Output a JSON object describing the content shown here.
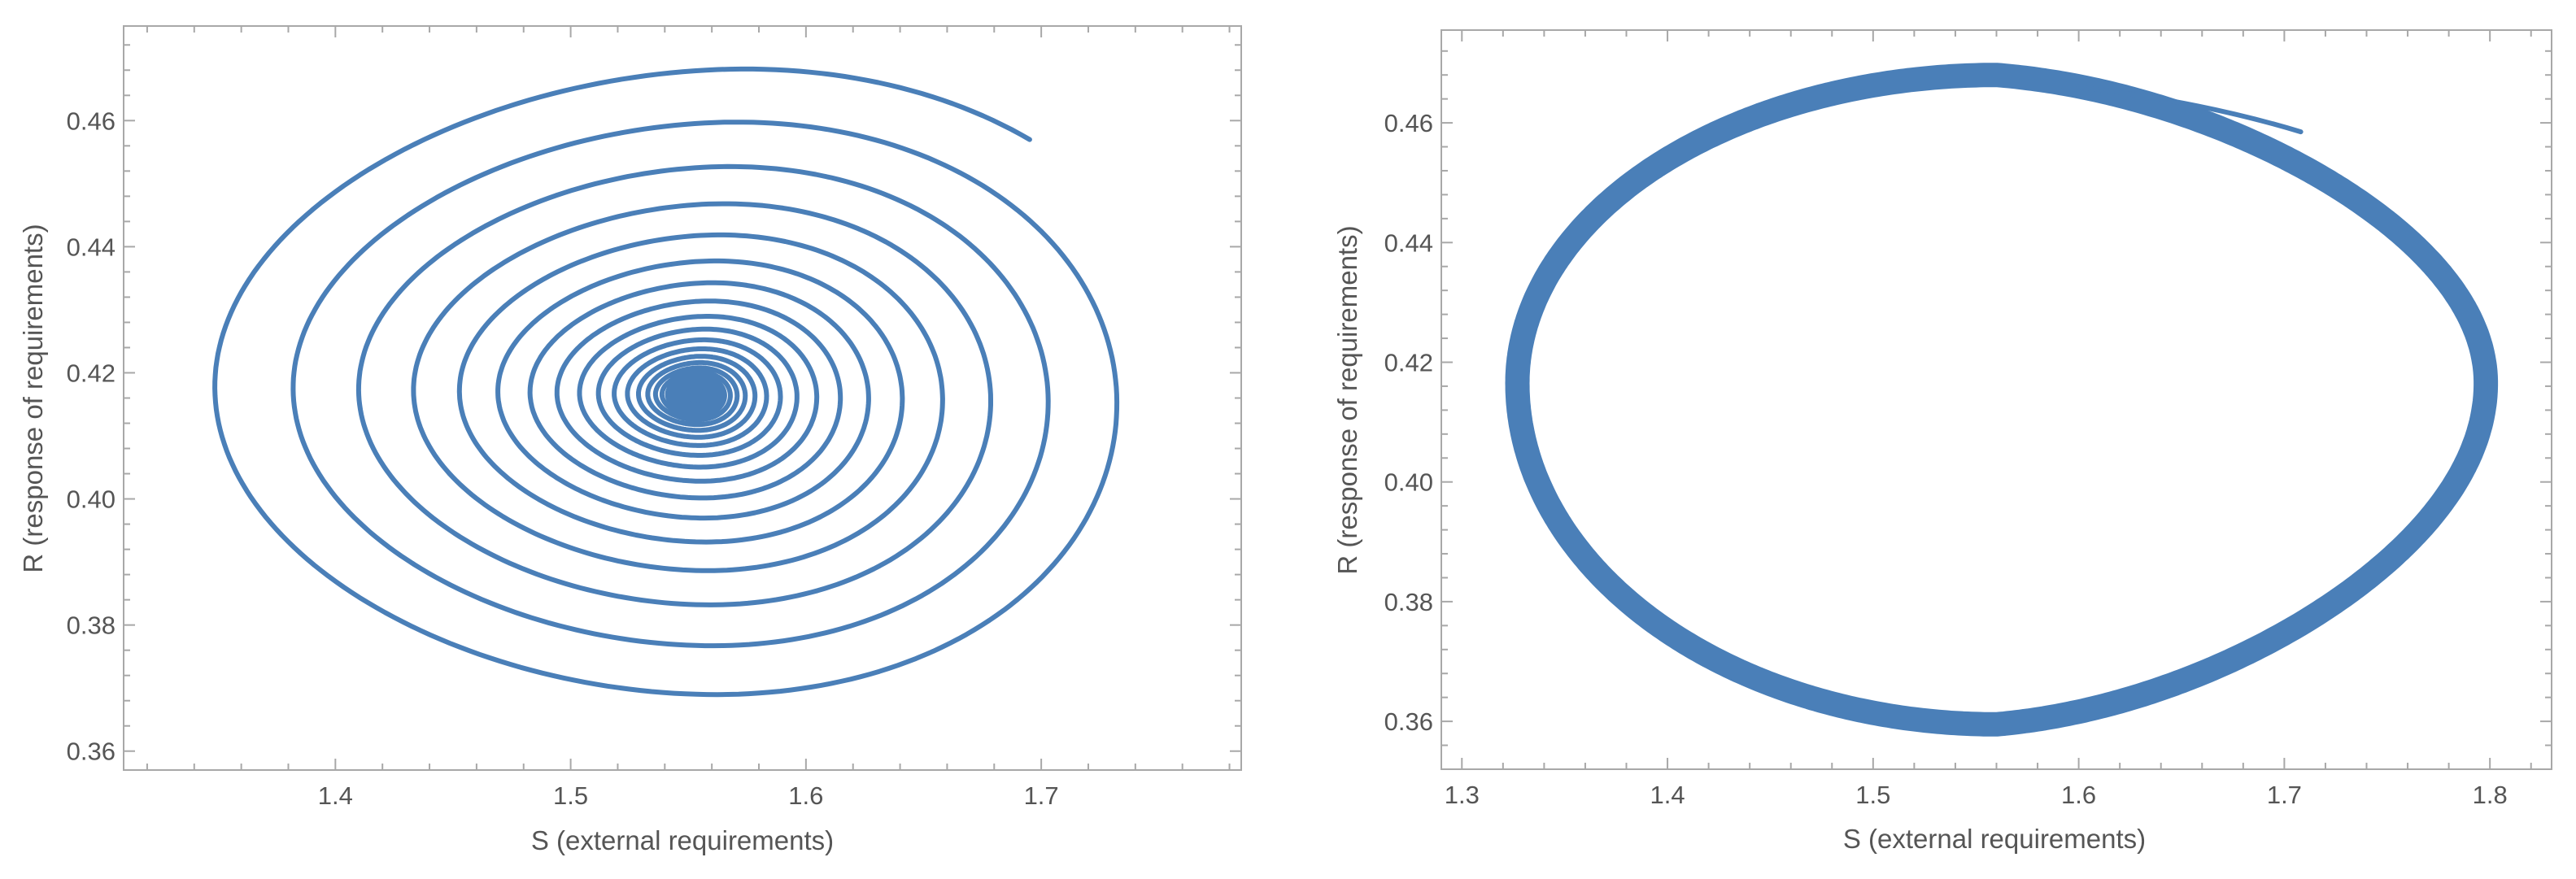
{
  "chart_data": [
    {
      "type": "line",
      "description_kind": "phase-portrait-spiral",
      "xlabel": "S (external requirements)",
      "ylabel": "R (response of requirements)",
      "xlim": [
        1.31,
        1.785
      ],
      "ylim": [
        0.357,
        0.475
      ],
      "xticks": [
        1.4,
        1.5,
        1.6,
        1.7
      ],
      "xtick_labels": [
        "1.4",
        "1.5",
        "1.6",
        "1.7"
      ],
      "yticks": [
        0.36,
        0.38,
        0.4,
        0.42,
        0.44,
        0.46
      ],
      "ytick_labels": [
        "0.36",
        "0.38",
        "0.40",
        "0.42",
        "0.44",
        "0.46"
      ],
      "x_minor_step": 0.02,
      "y_minor_step": 0.004,
      "grid": false,
      "series": [
        {
          "color": "#4a7fb8",
          "start": [
            1.708,
            0.4585
          ],
          "center": [
            1.553,
            0.4165
          ],
          "first_loop_extents": {
            "x_min": 1.335,
            "x_max": 1.762,
            "y_min": 0.3635,
            "y_max": 0.469
          },
          "approx_loops": 22,
          "behavior": "converging spiral to stable focus"
        }
      ]
    },
    {
      "type": "line",
      "description_kind": "phase-portrait-limit-cycle",
      "xlabel": "S (external requirements)",
      "ylabel": "R (response of requirements)",
      "xlim": [
        1.29,
        1.83
      ],
      "ylim": [
        0.352,
        0.4755
      ],
      "xticks": [
        1.3,
        1.4,
        1.5,
        1.6,
        1.7,
        1.8
      ],
      "xtick_labels": [
        "1.3",
        "1.4",
        "1.5",
        "1.6",
        "1.7",
        "1.8"
      ],
      "yticks": [
        0.36,
        0.38,
        0.4,
        0.42,
        0.44,
        0.46
      ],
      "ytick_labels": [
        "0.36",
        "0.38",
        "0.40",
        "0.42",
        "0.44",
        "0.46"
      ],
      "x_minor_step": 0.02,
      "y_minor_step": 0.004,
      "grid": false,
      "series": [
        {
          "color": "#4a7fb8",
          "start": [
            1.708,
            0.4585
          ],
          "cycle_extents": {
            "x_min": 1.327,
            "x_max": 1.798,
            "y_min": 0.3595,
            "y_max": 0.468
          },
          "cycle_center": [
            1.56,
            0.4165
          ],
          "behavior": "limit cycle (thick closed orbit)"
        }
      ]
    }
  ]
}
